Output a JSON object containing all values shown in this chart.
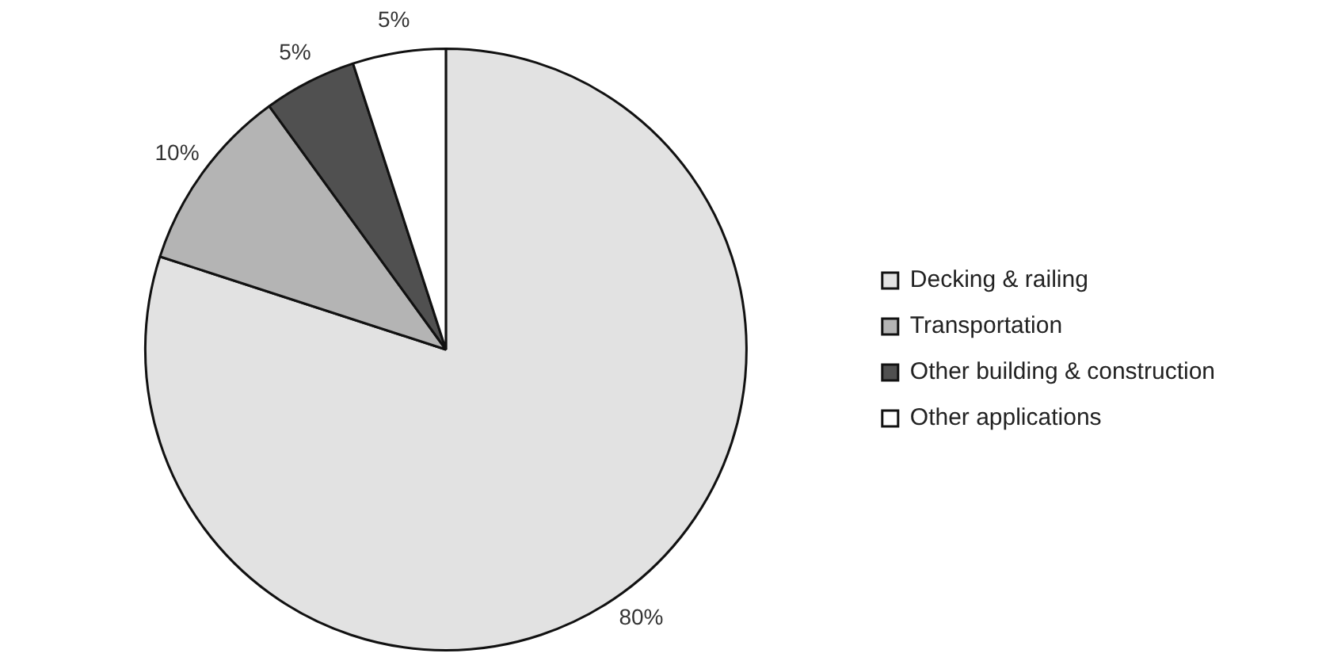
{
  "chart_data": {
    "type": "pie",
    "categories": [
      "Decking & railing",
      "Transportation",
      "Other building & construction",
      "Other applications"
    ],
    "values": [
      80,
      10,
      5,
      5
    ],
    "value_labels": [
      "80%",
      "10%",
      "5%",
      "5%"
    ],
    "colors": [
      "#e2e2e2",
      "#b4b4b4",
      "#505050",
      "#ffffff"
    ],
    "legend": "right"
  }
}
